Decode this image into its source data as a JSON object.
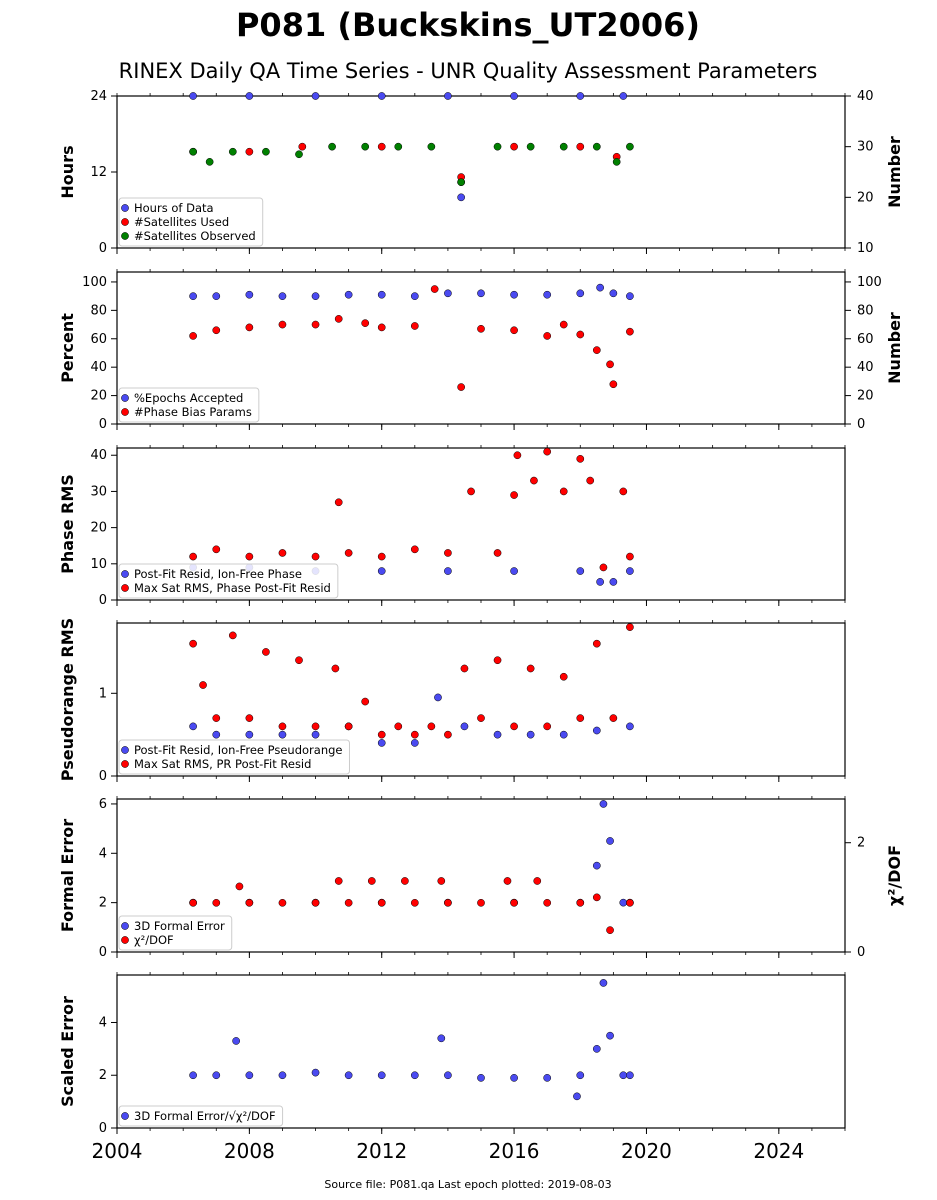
{
  "title": "P081 (Buckskins_UT2006)",
  "subtitle": "RINEX Daily QA Time Series - UNR Quality Assessment Parameters",
  "footer": "Source file: P081.qa Last epoch plotted: 2019-08-03",
  "colors": {
    "blue": "#4a4af0",
    "red": "#ff0000",
    "green": "#008000",
    "edge": "#000000"
  },
  "chart_data": [
    {
      "type": "scatter",
      "ylabel": "Hours",
      "y2label": "Number",
      "xlim": [
        2004,
        2026
      ],
      "ylim": [
        0,
        24
      ],
      "yticks": [
        0,
        12,
        24
      ],
      "y2lim": [
        10,
        40
      ],
      "y2ticks": [
        10,
        20,
        30,
        40
      ],
      "legend_position": "lower-left",
      "series": [
        {
          "name": "Hours of Data",
          "color": "blue",
          "axis": "left",
          "x": [
            2006.3,
            2008.0,
            2010.0,
            2012.0,
            2014.0,
            2014.4,
            2016.0,
            2018.0,
            2019.3
          ],
          "y": [
            24,
            24,
            24,
            24,
            24,
            8,
            24,
            24,
            24
          ]
        },
        {
          "name": "#Satellites Used",
          "color": "red",
          "axis": "right",
          "x": [
            2006.3,
            2008.0,
            2009.6,
            2012.0,
            2014.4,
            2014.4,
            2016.0,
            2018.0,
            2019.1
          ],
          "y": [
            29,
            29,
            30,
            30,
            23,
            24,
            30,
            30,
            28
          ]
        },
        {
          "name": "#Satellites Observed",
          "color": "green",
          "axis": "right",
          "x": [
            2006.3,
            2006.8,
            2007.5,
            2008.5,
            2009.5,
            2010.5,
            2011.5,
            2012.5,
            2013.5,
            2014.4,
            2015.5,
            2016.5,
            2017.5,
            2018.5,
            2019.1,
            2019.5
          ],
          "y": [
            29,
            27,
            29,
            29,
            28.5,
            30,
            30,
            30,
            30,
            23,
            30,
            30,
            30,
            30,
            27,
            30
          ]
        }
      ]
    },
    {
      "type": "scatter",
      "ylabel": "Percent",
      "y2label": "Number",
      "xlim": [
        2004,
        2026
      ],
      "ylim": [
        0,
        107
      ],
      "yticks": [
        0,
        20,
        40,
        60,
        80,
        100
      ],
      "y2lim": [
        0,
        107
      ],
      "y2ticks": [
        0,
        20,
        40,
        60,
        80,
        100
      ],
      "legend_position": "lower-left",
      "series": [
        {
          "name": "%Epochs Accepted",
          "color": "blue",
          "axis": "left",
          "x": [
            2006.3,
            2007.0,
            2008.0,
            2009.0,
            2010.0,
            2011.0,
            2012.0,
            2013.0,
            2014.0,
            2015.0,
            2016.0,
            2017.0,
            2018.0,
            2018.6,
            2019.0,
            2019.5
          ],
          "y": [
            90,
            90,
            91,
            90,
            90,
            91,
            91,
            90,
            92,
            92,
            91,
            91,
            92,
            96,
            92,
            90
          ]
        },
        {
          "name": "#Phase Bias Params",
          "color": "red",
          "axis": "right",
          "x": [
            2006.3,
            2007.0,
            2008.0,
            2009.0,
            2010.0,
            2010.7,
            2011.5,
            2012.0,
            2013.0,
            2013.6,
            2014.4,
            2015.0,
            2016.0,
            2017.0,
            2017.5,
            2018.0,
            2018.5,
            2018.9,
            2019.0,
            2019.5
          ],
          "y": [
            62,
            66,
            68,
            70,
            70,
            74,
            71,
            68,
            69,
            95,
            26,
            67,
            66,
            62,
            70,
            63,
            52,
            42,
            28,
            65
          ]
        }
      ]
    },
    {
      "type": "scatter",
      "ylabel": "Phase RMS",
      "xlim": [
        2004,
        2026
      ],
      "ylim": [
        0,
        42
      ],
      "yticks": [
        0,
        10,
        20,
        30,
        40
      ],
      "legend_position": "lower-left",
      "series": [
        {
          "name": "Post-Fit Resid, Ion-Free Phase",
          "color": "blue",
          "axis": "left",
          "x": [
            2006.3,
            2008.0,
            2010.0,
            2012.0,
            2014.0,
            2016.0,
            2018.0,
            2018.6,
            2019.0,
            2019.5
          ],
          "y": [
            9,
            9,
            8,
            8,
            8,
            8,
            8,
            5,
            5,
            8
          ]
        },
        {
          "name": "Max Sat RMS, Phase Post-Fit Resid",
          "color": "red",
          "axis": "left",
          "x": [
            2006.3,
            2007.0,
            2008.0,
            2009.0,
            2010.0,
            2010.7,
            2011.0,
            2012.0,
            2013.0,
            2014.0,
            2014.7,
            2015.5,
            2016.0,
            2016.1,
            2016.6,
            2017.0,
            2017.5,
            2018.0,
            2018.3,
            2018.7,
            2019.3,
            2019.5
          ],
          "y": [
            12,
            14,
            12,
            13,
            12,
            27,
            13,
            12,
            14,
            13,
            30,
            13,
            29,
            40,
            33,
            41,
            30,
            39,
            33,
            9,
            30,
            12
          ]
        }
      ]
    },
    {
      "type": "scatter",
      "ylabel": "Pseudorange RMS",
      "xlim": [
        2004,
        2026
      ],
      "ylim": [
        0,
        1.85
      ],
      "yticks": [
        0,
        1
      ],
      "legend_position": "lower-left",
      "series": [
        {
          "name": "Post-Fit Resid, Ion-Free Pseudorange",
          "color": "blue",
          "axis": "left",
          "x": [
            2006.3,
            2007.0,
            2008.0,
            2009.0,
            2010.0,
            2011.0,
            2012.0,
            2013.0,
            2013.7,
            2014.5,
            2015.5,
            2016.5,
            2017.5,
            2018.5,
            2019.5
          ],
          "y": [
            0.6,
            0.5,
            0.5,
            0.5,
            0.5,
            0.6,
            0.4,
            0.4,
            0.95,
            0.6,
            0.5,
            0.5,
            0.5,
            0.55,
            0.6
          ]
        },
        {
          "name": "Max Sat RMS, PR Post-Fit Resid",
          "color": "red",
          "axis": "left",
          "x": [
            2006.3,
            2006.6,
            2007.0,
            2007.5,
            2008.0,
            2008.5,
            2009.0,
            2009.5,
            2010.0,
            2010.6,
            2011.0,
            2011.5,
            2012.0,
            2012.5,
            2013.0,
            2013.5,
            2014.0,
            2014.5,
            2015.0,
            2015.5,
            2016.0,
            2016.5,
            2017.0,
            2017.5,
            2018.0,
            2018.5,
            2019.0,
            2019.5
          ],
          "y": [
            1.6,
            1.1,
            0.7,
            1.7,
            0.7,
            1.5,
            0.6,
            1.4,
            0.6,
            1.3,
            0.6,
            0.9,
            0.5,
            0.6,
            0.5,
            0.6,
            0.5,
            1.3,
            0.7,
            1.4,
            0.6,
            1.3,
            0.6,
            1.2,
            0.7,
            1.6,
            0.7,
            1.8
          ]
        }
      ]
    },
    {
      "type": "scatter",
      "ylabel": "Formal Error",
      "y2label": "χ²/DOF",
      "xlim": [
        2004,
        2026
      ],
      "ylim": [
        0,
        6.2
      ],
      "yticks": [
        0,
        2,
        4,
        6
      ],
      "y2lim": [
        0,
        2.8
      ],
      "y2ticks": [
        0,
        2
      ],
      "legend_position": "lower-left",
      "series": [
        {
          "name": "3D Formal Error",
          "color": "blue",
          "axis": "left",
          "x": [
            2006.3,
            2008.0,
            2010.0,
            2012.0,
            2014.0,
            2016.0,
            2018.0,
            2018.5,
            2018.7,
            2018.9,
            2019.3,
            2019.5
          ],
          "y": [
            2.0,
            2.0,
            2.0,
            2.0,
            2.0,
            2.0,
            2.0,
            3.5,
            6.0,
            4.5,
            2.0,
            2.0
          ]
        },
        {
          "name": "χ²/DOF",
          "color": "red",
          "axis": "right",
          "x": [
            2006.3,
            2007.0,
            2007.7,
            2008.0,
            2009.0,
            2010.0,
            2010.7,
            2011.0,
            2011.7,
            2012.0,
            2012.7,
            2013.0,
            2013.8,
            2014.0,
            2015.0,
            2015.8,
            2016.0,
            2016.7,
            2017.0,
            2018.0,
            2018.5,
            2018.9,
            2019.5
          ],
          "y": [
            0.9,
            0.9,
            1.2,
            0.9,
            0.9,
            0.9,
            1.3,
            0.9,
            1.3,
            0.9,
            1.3,
            0.9,
            1.3,
            0.9,
            0.9,
            1.3,
            0.9,
            1.3,
            0.9,
            0.9,
            1.0,
            0.4,
            0.9
          ]
        }
      ]
    },
    {
      "type": "scatter",
      "ylabel": "Scaled Error",
      "xlim": [
        2004,
        2026
      ],
      "ylim": [
        0,
        5.8
      ],
      "yticks": [
        0,
        2,
        4
      ],
      "xticks": [
        2004,
        2008,
        2012,
        2016,
        2020,
        2024
      ],
      "legend_position": "lower-left",
      "series": [
        {
          "name": "3D Formal Error/√χ²/DOF",
          "color": "blue",
          "axis": "left",
          "x": [
            2006.3,
            2007.0,
            2007.6,
            2008.0,
            2009.0,
            2010.0,
            2011.0,
            2012.0,
            2013.0,
            2013.8,
            2014.0,
            2015.0,
            2016.0,
            2017.0,
            2017.9,
            2018.0,
            2018.5,
            2018.7,
            2018.9,
            2019.3,
            2019.5
          ],
          "y": [
            2.0,
            2.0,
            3.3,
            2.0,
            2.0,
            2.1,
            2.0,
            2.0,
            2.0,
            3.4,
            2.0,
            1.9,
            1.9,
            1.9,
            1.2,
            2.0,
            3.0,
            5.5,
            3.5,
            2.0,
            2.0
          ]
        }
      ]
    }
  ]
}
